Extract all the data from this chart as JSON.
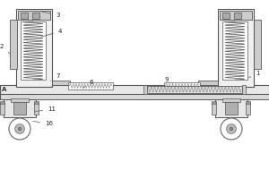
{
  "figsize": [
    3.0,
    2.0
  ],
  "dpi": 100,
  "bg": "white",
  "lc": "#555555",
  "dc": "#333333",
  "fg": "#e8e8e8",
  "dg": "#cccccc",
  "vdg": "#aaaaaa"
}
